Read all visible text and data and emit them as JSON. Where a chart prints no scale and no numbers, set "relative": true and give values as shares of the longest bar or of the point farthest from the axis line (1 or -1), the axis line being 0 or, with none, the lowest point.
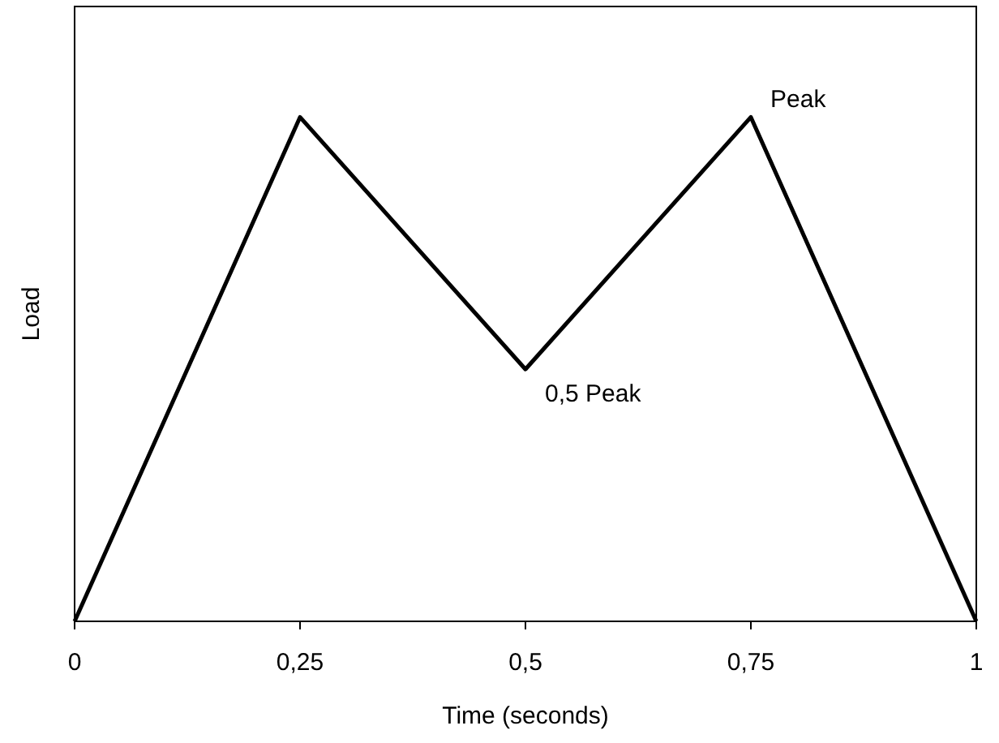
{
  "chart_data": {
    "type": "line",
    "relative": true,
    "xlabel": "Time (seconds)",
    "ylabel": "Load",
    "x": [
      0,
      0.25,
      0.5,
      0.75,
      1
    ],
    "values": [
      0,
      1,
      0.5,
      1,
      0
    ],
    "color": "#000000",
    "xlim": [
      0,
      1
    ],
    "xticks": [
      0,
      {
        "value": 0.25,
        "label": "0,25"
      },
      {
        "value": 0.5,
        "label": "0,5"
      },
      {
        "value": 0.75,
        "label": "0,75"
      },
      1
    ],
    "tick_labels": "x",
    "annotations": [
      {
        "text": "0,5 Peak",
        "x": 0.5,
        "y": 0.5
      },
      {
        "text": "Peak",
        "x": 0.75,
        "y": 1
      }
    ]
  }
}
